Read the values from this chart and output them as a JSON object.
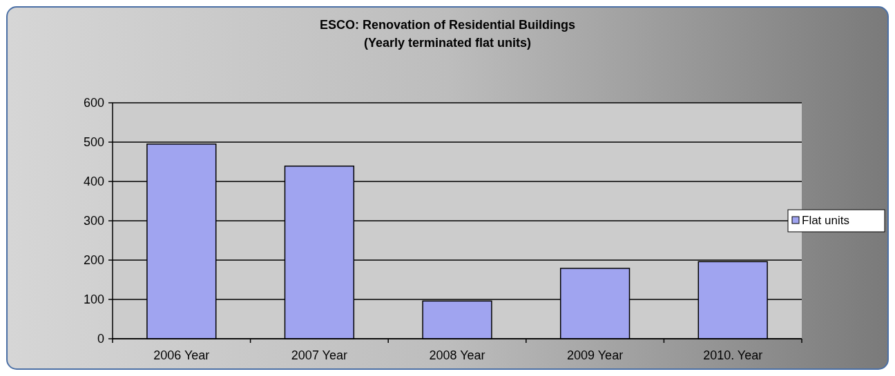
{
  "chart_data": {
    "type": "bar",
    "title": "ESCO: Renovation of Residential Buildings",
    "subtitle": "(Yearly terminated flat units)",
    "categories": [
      "2006 Year",
      "2007 Year",
      "2008 Year",
      "2009 Year",
      "2010. Year"
    ],
    "series": [
      {
        "name": "Flat units",
        "color": "#a0a4f0",
        "values": [
          495,
          439,
          96,
          179,
          196
        ]
      }
    ],
    "ylim": [
      0,
      600
    ],
    "yticks": [
      0,
      100,
      200,
      300,
      400,
      500,
      600
    ],
    "grid": "y",
    "legend": "right"
  }
}
